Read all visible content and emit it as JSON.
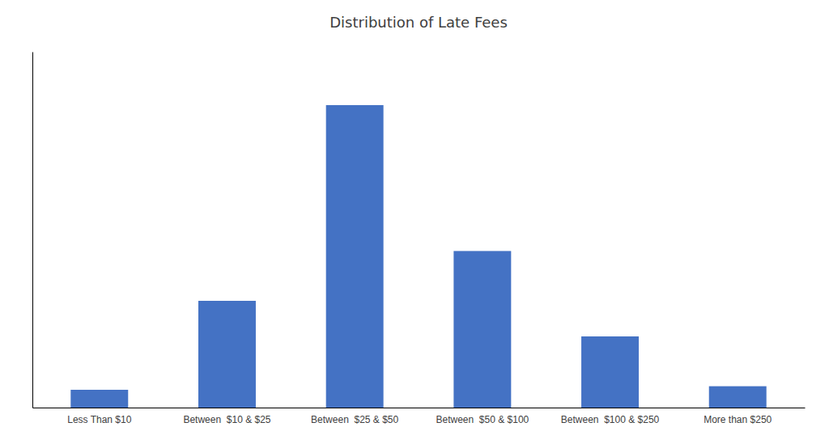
{
  "chart_data": {
    "type": "bar",
    "title": "Distribution of Late Fees",
    "categories": [
      "Less Than $10",
      "Between  $10 & $25",
      "Between  $25 & $50",
      "Between  $50 & $100",
      "Between  $100 & $250",
      "More than $250"
    ],
    "values": [
      5,
      30,
      85,
      44,
      20,
      6
    ],
    "color": "#4472C4",
    "ylim": [
      0,
      100
    ],
    "yticks": [],
    "grid": false,
    "tick_labels": "x"
  }
}
